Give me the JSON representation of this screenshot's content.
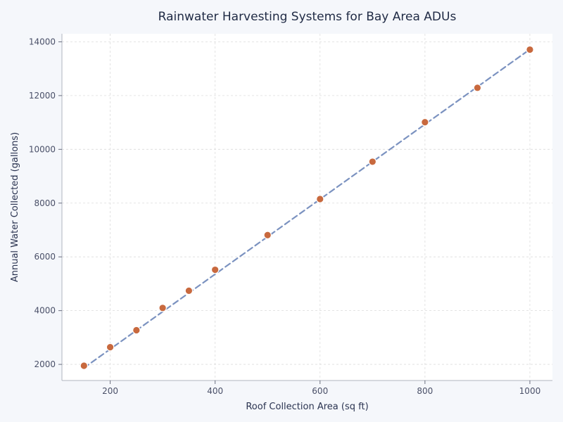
{
  "chart_data": {
    "type": "scatter",
    "title": "Rainwater Harvesting Systems for Bay Area ADUs",
    "xlabel": "Roof Collection Area (sq ft)",
    "ylabel": "Annual Water Collected (gallons)",
    "xlim": [
      108,
      1043
    ],
    "ylim": [
      1400,
      14300
    ],
    "xticks": [
      200,
      400,
      600,
      800,
      1000
    ],
    "yticks": [
      2000,
      4000,
      6000,
      8000,
      10000,
      12000,
      14000
    ],
    "grid": true,
    "x": [
      150,
      200,
      250,
      300,
      350,
      400,
      500,
      600,
      700,
      800,
      900,
      1000
    ],
    "y": [
      1950,
      2640,
      3270,
      4100,
      4740,
      5520,
      6810,
      8150,
      9540,
      11010,
      12290,
      13710
    ],
    "trendline": {
      "style": "dashed",
      "from": [
        150,
        1870
      ],
      "to": [
        1000,
        13720
      ]
    },
    "colors": {
      "points": "#c8693e",
      "trendline": "#7b92c0",
      "grid": "#dcdcdc"
    }
  }
}
